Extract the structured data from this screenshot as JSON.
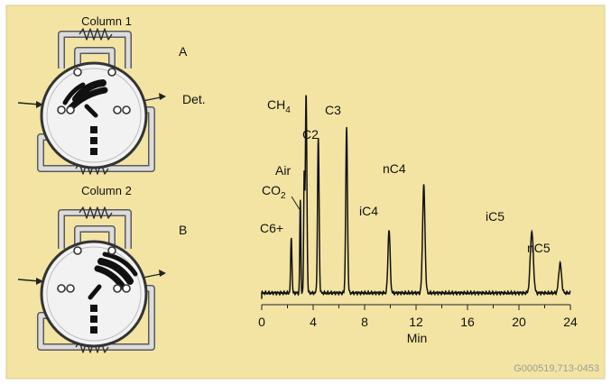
{
  "colors": {
    "background": "#f3e4a3",
    "frame": "#d9c98c",
    "trace": "#111111",
    "tubing": "#dcdcdc",
    "valve_face": "#f2f2f2",
    "ref_text": "#9c9c9c"
  },
  "valve_a": {
    "label": "A",
    "column_label": "Column 1",
    "detector_label": "Det."
  },
  "valve_b": {
    "label": "B",
    "column_label": "Column 2"
  },
  "chart_data": {
    "type": "line",
    "xlabel": "Min",
    "xlim": [
      0,
      24
    ],
    "x_ticks": [
      "0",
      "4",
      "8",
      "12",
      "16",
      "20",
      "24"
    ],
    "x_ticks_unlabeled": [
      2,
      6,
      10,
      14,
      18,
      22
    ],
    "baseline": 0,
    "ylim": [
      0,
      100
    ],
    "peaks": [
      {
        "name": "C6+",
        "rt": 2.3,
        "height": 28,
        "width": 0.15
      },
      {
        "name": "CO2",
        "rt": 3.0,
        "height": 47,
        "width": 0.12
      },
      {
        "name": "Air",
        "rt": 3.3,
        "height": 57,
        "width": 0.12
      },
      {
        "name": "CH4",
        "rt": 3.45,
        "height": 100,
        "width": 0.18
      },
      {
        "name": "C2",
        "rt": 4.4,
        "height": 78,
        "width": 0.18
      },
      {
        "name": "C3",
        "rt": 6.6,
        "height": 83,
        "width": 0.2
      },
      {
        "name": "iC4",
        "rt": 9.9,
        "height": 32,
        "width": 0.25
      },
      {
        "name": "nC4",
        "rt": 12.6,
        "height": 54,
        "width": 0.28
      },
      {
        "name": "iC5",
        "rt": 21.0,
        "height": 31,
        "width": 0.35
      },
      {
        "name": "nC5",
        "rt": 23.2,
        "height": 15,
        "width": 0.32
      }
    ],
    "peak_labels": {
      "c6": "C6+",
      "co2_main": "CO",
      "co2_sub": "2",
      "air": "Air",
      "ch4_main": "CH",
      "ch4_sub": "4",
      "c2": "C2",
      "c3": "C3",
      "ic4": "iC4",
      "nc4": "nC4",
      "ic5": "iC5",
      "nc5": "nC5"
    }
  },
  "figure_reference": "G000519,713-0453"
}
